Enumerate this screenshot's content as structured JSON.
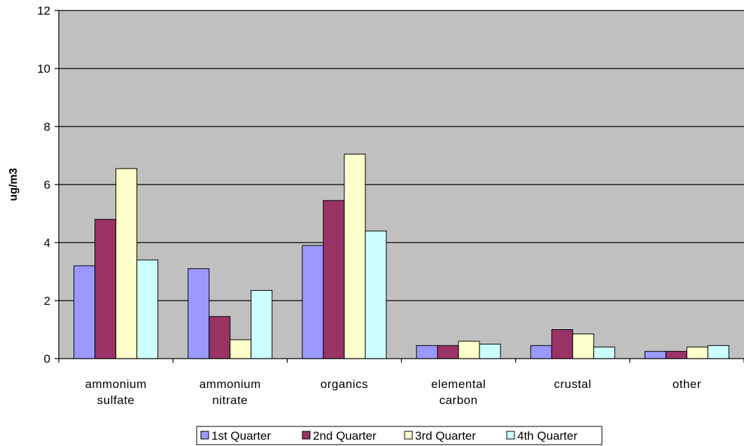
{
  "chart_data": {
    "type": "bar",
    "title": "",
    "xlabel": "",
    "ylabel": "ug/m3",
    "ylim": [
      0,
      12
    ],
    "yticks": [
      0,
      2,
      4,
      6,
      8,
      10,
      12
    ],
    "grid": "horizontal",
    "legend_position": "bottom",
    "plot_background": "#c0c0c0",
    "categories": [
      [
        "ammonium",
        "sulfate"
      ],
      [
        "ammonium",
        "nitrate"
      ],
      [
        "organics"
      ],
      [
        "elemental",
        "carbon"
      ],
      [
        "crustal"
      ],
      [
        "other"
      ]
    ],
    "series": [
      {
        "name": "1st Quarter",
        "color": "#9999ff",
        "values": [
          3.2,
          3.1,
          3.9,
          0.45,
          0.45,
          0.25
        ]
      },
      {
        "name": "2nd Quarter",
        "color": "#993366",
        "values": [
          4.8,
          1.45,
          5.45,
          0.45,
          1.0,
          0.25
        ]
      },
      {
        "name": "3rd Quarter",
        "color": "#ffffcc",
        "values": [
          6.55,
          0.65,
          7.05,
          0.6,
          0.85,
          0.4
        ]
      },
      {
        "name": "4th Quarter",
        "color": "#ccffff",
        "values": [
          3.4,
          2.35,
          4.4,
          0.5,
          0.4,
          0.45
        ]
      }
    ]
  }
}
